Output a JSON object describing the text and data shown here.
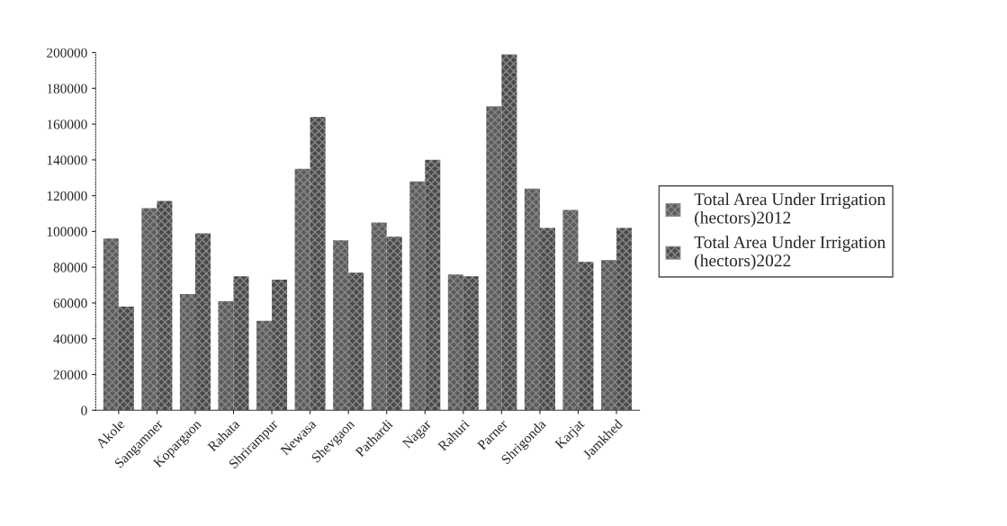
{
  "chart_data": {
    "type": "bar",
    "categories": [
      "Akole",
      "Sangamner",
      "Kopargaon",
      "Rahata",
      "Shrirampur",
      "Newasa",
      "Shevgaon",
      "Pathardi",
      "Nagar",
      "Rahuri",
      "Parner",
      "Shrigonda",
      "Karjat",
      "Jamkhed"
    ],
    "series": [
      {
        "name": "Total Area Under Irrigation (hectors)2012",
        "color": "#5c5c5c",
        "values": [
          96000,
          113000,
          65000,
          61000,
          50000,
          135000,
          95000,
          105000,
          128000,
          76000,
          170000,
          124000,
          112000,
          84000
        ]
      },
      {
        "name": "Total Area Under Irrigation (hectors)2022",
        "color": "#4a4a4a",
        "values": [
          58000,
          117000,
          99000,
          75000,
          73000,
          164000,
          77000,
          97000,
          140000,
          75000,
          199000,
          102000,
          83000,
          102000
        ]
      }
    ],
    "ylim": [
      0,
      200000
    ],
    "yticks": [
      0,
      20000,
      40000,
      60000,
      80000,
      100000,
      120000,
      140000,
      160000,
      180000,
      200000
    ],
    "grid": false,
    "legend": "right"
  }
}
